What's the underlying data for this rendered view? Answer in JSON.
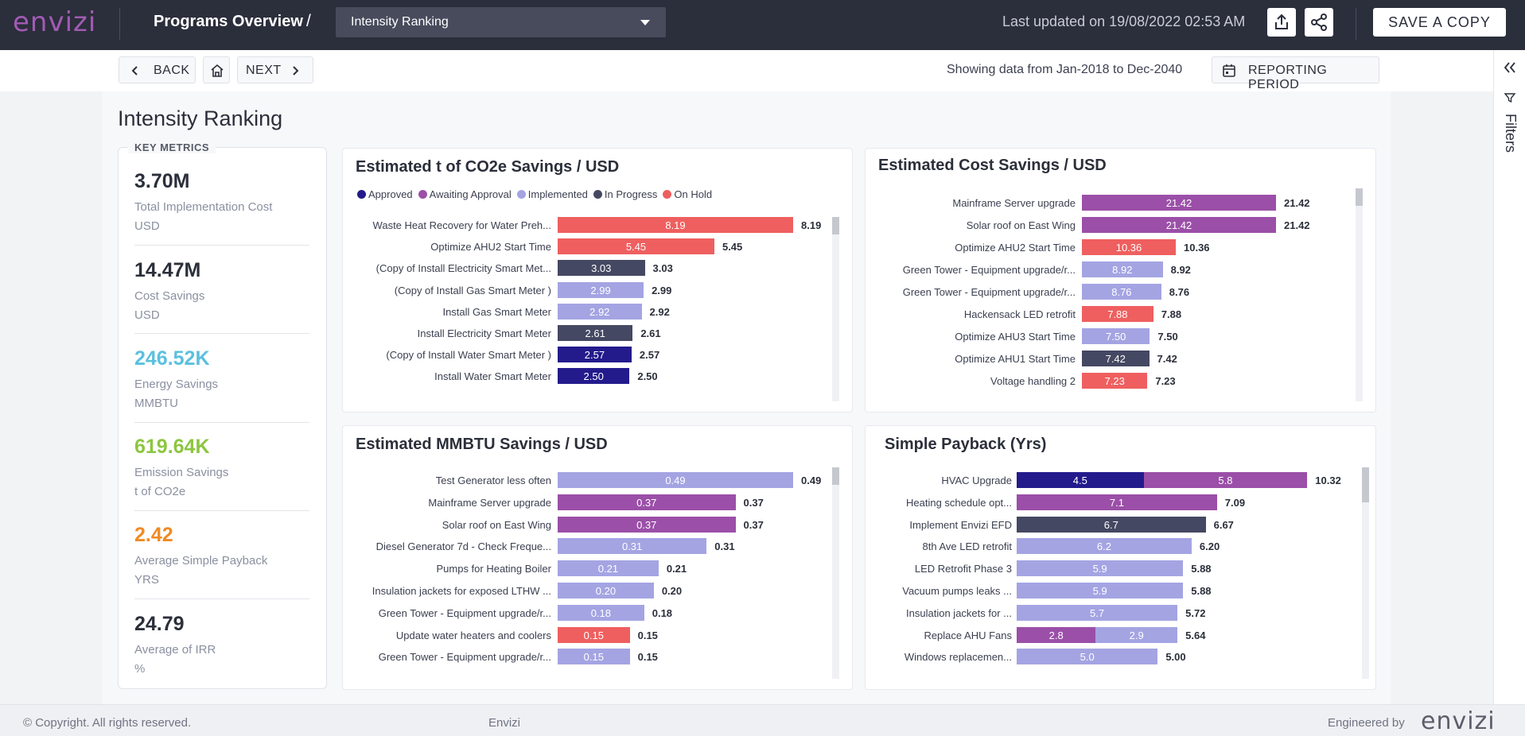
{
  "header": {
    "logo": "envizi",
    "breadcrumb": "Programs Overview",
    "separator": "/",
    "dashboard_select": "Intensity Ranking",
    "last_updated": "Last updated on 19/08/2022 02:53 AM",
    "save_copy": "SAVE A COPY",
    "icons": [
      "export-icon",
      "share-icon"
    ]
  },
  "nav": {
    "back": "BACK",
    "next": "NEXT",
    "showing": "Showing data from Jan-2018 to Dec-2040",
    "reporting_period": "REPORTING PERIOD"
  },
  "rail": {
    "filters": "Filters"
  },
  "page_title": "Intensity Ranking",
  "key_metrics": {
    "title": "KEY METRICS",
    "items": [
      {
        "value": "3.70M",
        "label": "Total Implementation Cost",
        "unit": "USD",
        "color": "#2b2f3a"
      },
      {
        "value": "14.47M",
        "label": "Cost Savings",
        "unit": "USD",
        "color": "#2b2f3a"
      },
      {
        "value": "246.52K",
        "label": "Energy Savings",
        "unit": "MMBTU",
        "color": "#5bc0de"
      },
      {
        "value": "619.64K",
        "label": "Emission Savings",
        "unit": "t of CO2e",
        "color": "#8cc63f"
      },
      {
        "value": "2.42",
        "label": "Average Simple Payback",
        "unit": "YRS",
        "color": "#f08a24"
      },
      {
        "value": "24.79",
        "label": "Average of IRR",
        "unit": "%",
        "color": "#2b2f3a"
      }
    ]
  },
  "status_colors": {
    "Approved": "#231b8c",
    "Awaiting Approval": "#9b4fa8",
    "Implemented": "#a4a4e3",
    "In Progress": "#454862",
    "On Hold": "#ef5f5f"
  },
  "legend": [
    "Approved",
    "Awaiting Approval",
    "Implemented",
    "In Progress",
    "On Hold"
  ],
  "chart_data": [
    {
      "type": "bar",
      "orientation": "horizontal",
      "title": "Estimated t of CO2e Savings / USD",
      "legend": "top",
      "xlim": [
        0,
        8.19
      ],
      "rows": [
        {
          "label": "Waste Heat Recovery for Water Preh...",
          "segments": [
            {
              "value": 8.19,
              "label": "8.19",
              "status": "On Hold"
            }
          ],
          "total": "8.19"
        },
        {
          "label": "Optimize AHU2 Start Time",
          "segments": [
            {
              "value": 5.45,
              "label": "5.45",
              "status": "On Hold"
            }
          ],
          "total": "5.45"
        },
        {
          "label": "(Copy of Install Electricity Smart Met...",
          "segments": [
            {
              "value": 3.03,
              "label": "3.03",
              "status": "In Progress"
            }
          ],
          "total": "3.03"
        },
        {
          "label": "(Copy of Install Gas Smart Meter )",
          "segments": [
            {
              "value": 2.99,
              "label": "2.99",
              "status": "Implemented"
            }
          ],
          "total": "2.99"
        },
        {
          "label": "Install Gas Smart Meter",
          "segments": [
            {
              "value": 2.92,
              "label": "2.92",
              "status": "Implemented"
            }
          ],
          "total": "2.92"
        },
        {
          "label": "Install Electricity Smart Meter",
          "segments": [
            {
              "value": 2.61,
              "label": "2.61",
              "status": "In Progress"
            }
          ],
          "total": "2.61"
        },
        {
          "label": "(Copy of Install Water Smart Meter )",
          "segments": [
            {
              "value": 2.57,
              "label": "2.57",
              "status": "Approved"
            }
          ],
          "total": "2.57"
        },
        {
          "label": "Install Water Smart Meter",
          "segments": [
            {
              "value": 2.5,
              "label": "2.50",
              "status": "Approved"
            }
          ],
          "total": "2.50"
        }
      ]
    },
    {
      "type": "bar",
      "orientation": "horizontal",
      "title": "Estimated Cost Savings / USD",
      "xlim": [
        0,
        21.42
      ],
      "rows": [
        {
          "label": "Mainframe Server upgrade",
          "segments": [
            {
              "value": 21.42,
              "label": "21.42",
              "status": "Awaiting Approval"
            }
          ],
          "total": "21.42"
        },
        {
          "label": "Solar roof on East Wing",
          "segments": [
            {
              "value": 21.42,
              "label": "21.42",
              "status": "Awaiting Approval"
            }
          ],
          "total": "21.42"
        },
        {
          "label": "Optimize AHU2 Start Time",
          "segments": [
            {
              "value": 10.36,
              "label": "10.36",
              "status": "On Hold"
            }
          ],
          "total": "10.36"
        },
        {
          "label": "Green Tower - Equipment upgrade/r...",
          "segments": [
            {
              "value": 8.92,
              "label": "8.92",
              "status": "Implemented"
            }
          ],
          "total": "8.92"
        },
        {
          "label": "Green Tower - Equipment upgrade/r...",
          "segments": [
            {
              "value": 8.76,
              "label": "8.76",
              "status": "Implemented"
            }
          ],
          "total": "8.76"
        },
        {
          "label": "Hackensack LED retrofit",
          "segments": [
            {
              "value": 7.88,
              "label": "7.88",
              "status": "On Hold"
            }
          ],
          "total": "7.88"
        },
        {
          "label": "Optimize AHU3 Start Time",
          "segments": [
            {
              "value": 7.5,
              "label": "7.50",
              "status": "Implemented"
            }
          ],
          "total": "7.50"
        },
        {
          "label": "Optimize AHU1 Start Time",
          "segments": [
            {
              "value": 7.42,
              "label": "7.42",
              "status": "In Progress"
            }
          ],
          "total": "7.42"
        },
        {
          "label": "Voltage handling 2",
          "segments": [
            {
              "value": 7.23,
              "label": "7.23",
              "status": "On Hold"
            }
          ],
          "total": "7.23"
        }
      ]
    },
    {
      "type": "bar",
      "orientation": "horizontal",
      "title": "Estimated MMBTU Savings / USD",
      "xlim": [
        0,
        0.49
      ],
      "rows": [
        {
          "label": "Test Generator less often",
          "segments": [
            {
              "value": 0.49,
              "label": "0.49",
              "status": "Implemented"
            }
          ],
          "total": "0.49"
        },
        {
          "label": "Mainframe Server upgrade",
          "segments": [
            {
              "value": 0.37,
              "label": "0.37",
              "status": "Awaiting Approval"
            }
          ],
          "total": "0.37"
        },
        {
          "label": "Solar roof on East Wing",
          "segments": [
            {
              "value": 0.37,
              "label": "0.37",
              "status": "Awaiting Approval"
            }
          ],
          "total": "0.37"
        },
        {
          "label": "Diesel Generator 7d - Check Freque...",
          "segments": [
            {
              "value": 0.31,
              "label": "0.31",
              "status": "Implemented"
            }
          ],
          "total": "0.31"
        },
        {
          "label": "Pumps for Heating Boiler",
          "segments": [
            {
              "value": 0.21,
              "label": "0.21",
              "status": "Implemented"
            }
          ],
          "total": "0.21"
        },
        {
          "label": "Insulation jackets for exposed LTHW ...",
          "segments": [
            {
              "value": 0.2,
              "label": "0.20",
              "status": "Implemented"
            }
          ],
          "total": "0.20"
        },
        {
          "label": "Green Tower - Equipment upgrade/r...",
          "segments": [
            {
              "value": 0.18,
              "label": "0.18",
              "status": "Implemented"
            }
          ],
          "total": "0.18"
        },
        {
          "label": "Update water heaters and coolers",
          "segments": [
            {
              "value": 0.15,
              "label": "0.15",
              "status": "On Hold"
            }
          ],
          "total": "0.15"
        },
        {
          "label": "Green Tower - Equipment upgrade/r...",
          "segments": [
            {
              "value": 0.15,
              "label": "0.15",
              "status": "Implemented"
            }
          ],
          "total": "0.15"
        }
      ]
    },
    {
      "type": "bar",
      "orientation": "horizontal",
      "stacked": true,
      "title": "Simple Payback (Yrs)",
      "xlim": [
        0,
        10.32
      ],
      "rows": [
        {
          "label": "HVAC Upgrade",
          "segments": [
            {
              "value": 4.5,
              "label": "4.5",
              "status": "Approved"
            },
            {
              "value": 5.8,
              "label": "5.8",
              "status": "Awaiting Approval"
            }
          ],
          "total": "10.32"
        },
        {
          "label": "Heating schedule opt...",
          "segments": [
            {
              "value": 7.1,
              "label": "7.1",
              "status": "Awaiting Approval"
            }
          ],
          "total": "7.09"
        },
        {
          "label": "Implement Envizi EFD",
          "segments": [
            {
              "value": 6.7,
              "label": "6.7",
              "status": "In Progress"
            }
          ],
          "total": "6.67"
        },
        {
          "label": "8th Ave LED retrofit",
          "segments": [
            {
              "value": 6.2,
              "label": "6.2",
              "status": "Implemented"
            }
          ],
          "total": "6.20"
        },
        {
          "label": "LED Retrofit Phase 3",
          "segments": [
            {
              "value": 5.9,
              "label": "5.9",
              "status": "Implemented"
            }
          ],
          "total": "5.88"
        },
        {
          "label": "Vacuum pumps leaks ...",
          "segments": [
            {
              "value": 5.9,
              "label": "5.9",
              "status": "Implemented"
            }
          ],
          "total": "5.88"
        },
        {
          "label": "Insulation jackets for ...",
          "segments": [
            {
              "value": 5.7,
              "label": "5.7",
              "status": "Implemented"
            }
          ],
          "total": "5.72"
        },
        {
          "label": "Replace AHU Fans",
          "segments": [
            {
              "value": 2.8,
              "label": "2.8",
              "status": "Awaiting Approval"
            },
            {
              "value": 2.9,
              "label": "2.9",
              "status": "Implemented"
            }
          ],
          "total": "5.64"
        },
        {
          "label": "Windows replacemen...",
          "segments": [
            {
              "value": 5.0,
              "label": "5.0",
              "status": "Implemented"
            }
          ],
          "total": "5.00"
        }
      ]
    }
  ],
  "footer": {
    "copyright": "© Copyright. All rights reserved.",
    "center": "Envizi",
    "engineered_by": "Engineered by",
    "logo": "envizi"
  }
}
